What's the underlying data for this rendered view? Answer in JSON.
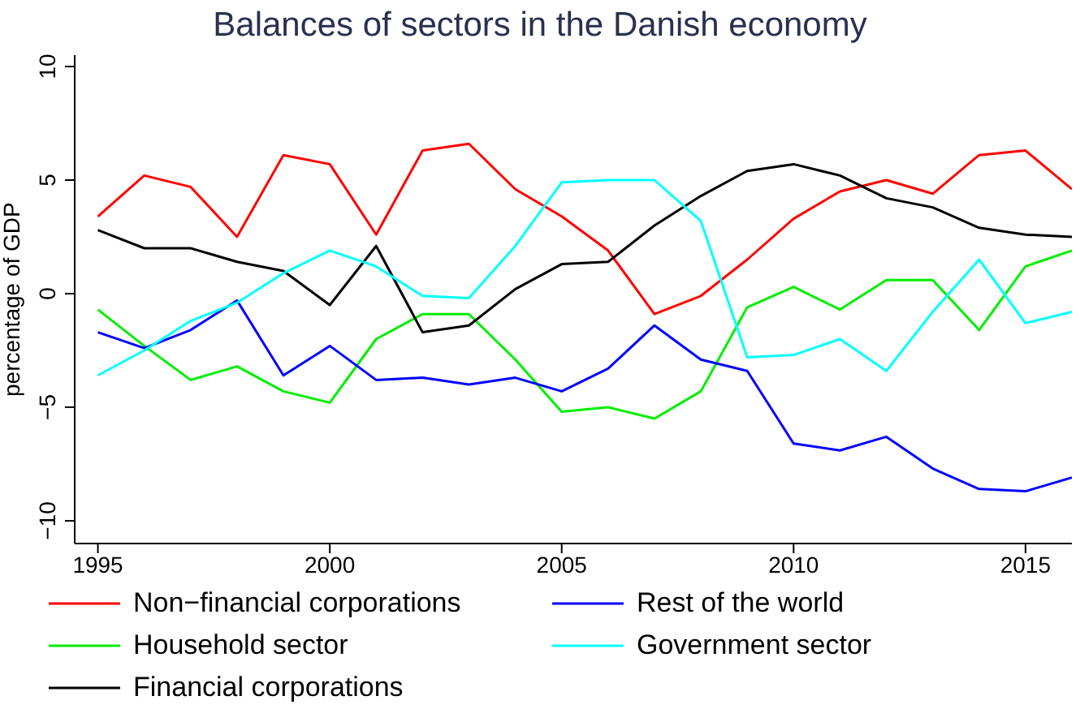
{
  "chart_data": {
    "type": "line",
    "title": "Balances of sectors in the Danish economy",
    "ylabel": "percentage of GDP",
    "x": [
      1995,
      1996,
      1997,
      1998,
      1999,
      2000,
      2001,
      2002,
      2003,
      2004,
      2005,
      2006,
      2007,
      2008,
      2009,
      2010,
      2011,
      2012,
      2013,
      2014,
      2015,
      2016
    ],
    "series": [
      {
        "name": "Non−financial corporations",
        "color": "#ff0000",
        "values": [
          3.4,
          5.2,
          4.7,
          2.5,
          6.1,
          5.7,
          2.6,
          6.3,
          6.6,
          4.6,
          3.4,
          1.9,
          -0.9,
          -0.1,
          1.5,
          3.3,
          4.5,
          5.0,
          4.4,
          6.1,
          6.3,
          4.6
        ]
      },
      {
        "name": "Household sector",
        "color": "#00ee00",
        "values": [
          -0.7,
          -2.3,
          -3.8,
          -3.2,
          -4.3,
          -4.8,
          -2.0,
          -0.9,
          -0.9,
          -2.9,
          -5.2,
          -5.0,
          -5.5,
          -4.3,
          -0.6,
          0.3,
          -0.7,
          0.6,
          0.6,
          -1.6,
          1.2,
          1.9
        ]
      },
      {
        "name": "Financial corporations",
        "color": "#000000",
        "values": [
          2.8,
          2.0,
          2.0,
          1.4,
          1.0,
          -0.5,
          2.1,
          -1.7,
          -1.4,
          0.2,
          1.3,
          1.4,
          3.0,
          4.3,
          5.4,
          5.7,
          5.2,
          4.2,
          3.8,
          2.9,
          2.6,
          2.5
        ]
      },
      {
        "name": "Rest of the world",
        "color": "#0000ff",
        "values": [
          -1.7,
          -2.4,
          -1.6,
          -0.3,
          -3.6,
          -2.3,
          -3.8,
          -3.7,
          -4.0,
          -3.7,
          -4.3,
          -3.3,
          -1.4,
          -2.9,
          -3.4,
          -6.6,
          -6.9,
          -6.3,
          -7.7,
          -8.6,
          -8.7,
          -8.1
        ]
      },
      {
        "name": "Government sector",
        "color": "#00ffff",
        "values": [
          -3.6,
          -2.5,
          -1.2,
          -0.4,
          0.9,
          1.9,
          1.2,
          -0.1,
          -0.2,
          2.1,
          4.9,
          5.0,
          5.0,
          3.2,
          -2.8,
          -2.7,
          -2.0,
          -3.4,
          -0.8,
          1.5,
          -1.3,
          -0.8
        ]
      }
    ],
    "xlim": [
      1994.5,
      2016
    ],
    "xticks": [
      1995,
      2000,
      2005,
      2010,
      2015
    ],
    "ylim": [
      -11,
      10.5
    ],
    "yticks": [
      -10,
      -5,
      0,
      5,
      10
    ],
    "grid": false,
    "legend": "bottom",
    "marker": "none",
    "line_style": "solid"
  }
}
